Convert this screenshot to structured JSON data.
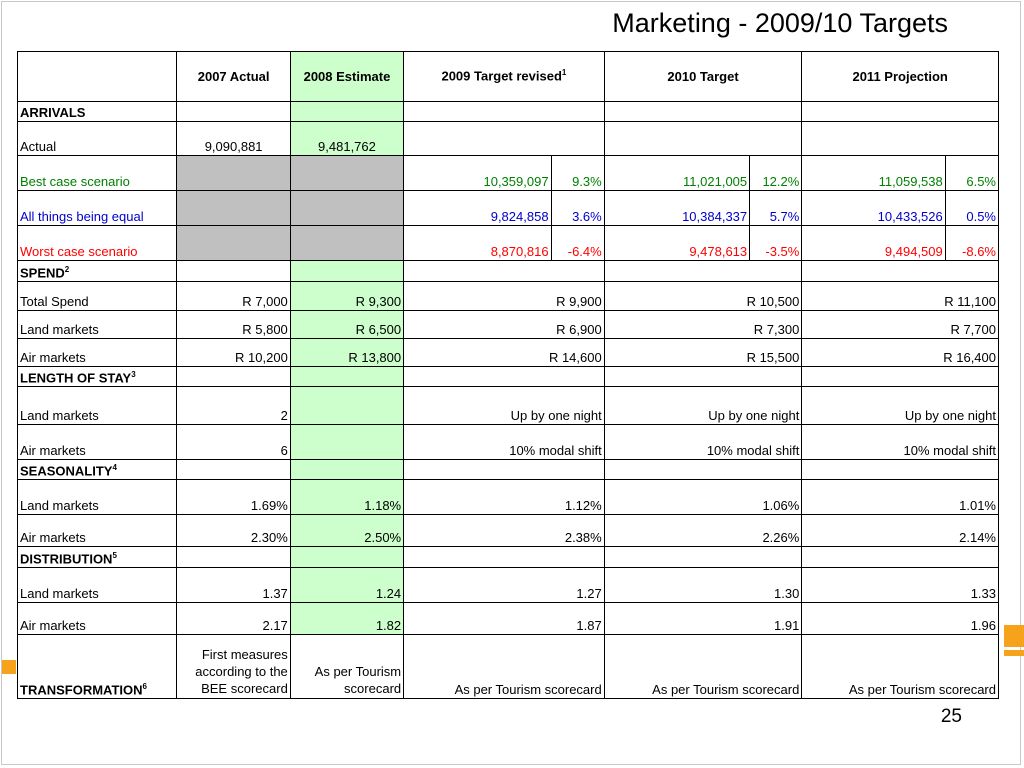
{
  "slide": {
    "title": "Marketing - 2009/10 Targets",
    "page_number": "25",
    "accent_color": "#f7a21b"
  },
  "table": {
    "headers": [
      "2007 Actual",
      "2008 Estimate",
      "2009 Target revised",
      "2010 Target",
      "2011 Projection"
    ],
    "header_footnote": "1",
    "arrivals": {
      "label": "ARRIVALS",
      "actual": {
        "label": "Actual",
        "y2007": "9,090,881",
        "y2008": "9,481,762"
      },
      "best": {
        "label": "Best case scenario",
        "y2009": "10,359,097",
        "p2009": "9.3%",
        "y2010": "11,021,005",
        "p2010": "12.2%",
        "y2011": "11,059,538",
        "p2011": "6.5%"
      },
      "equal": {
        "label": "All things being equal",
        "y2009": "9,824,858",
        "p2009": "3.6%",
        "y2010": "10,384,337",
        "p2010": "5.7%",
        "y2011": "10,433,526",
        "p2011": "0.5%"
      },
      "worst": {
        "label": "Worst case scenario",
        "y2009": "8,870,816",
        "p2009": "-6.4%",
        "y2010": "9,478,613",
        "p2010": "-3.5%",
        "y2011": "9,494,509",
        "p2011": "-8.6%"
      }
    },
    "spend": {
      "label": "SPEND",
      "footnote": "2",
      "rows": [
        {
          "label": "Total Spend",
          "v": [
            "R 7,000",
            "R 9,300",
            "R 9,900",
            "R 10,500",
            "R 11,100"
          ]
        },
        {
          "label": "Land markets",
          "v": [
            "R 5,800",
            "R 6,500",
            "R 6,900",
            "R 7,300",
            "R 7,700"
          ]
        },
        {
          "label": "Air markets",
          "v": [
            "R 10,200",
            "R 13,800",
            "R 14,600",
            "R 15,500",
            "R 16,400"
          ]
        }
      ]
    },
    "stay": {
      "label": "LENGTH OF STAY",
      "footnote": "3",
      "rows": [
        {
          "label": "Land markets",
          "v": [
            "2",
            "",
            "Up by one night",
            "Up by one night",
            "Up by one night"
          ]
        },
        {
          "label": "Air markets",
          "v": [
            "6",
            "",
            "10% modal shift",
            "10% modal shift",
            "10% modal shift"
          ]
        }
      ]
    },
    "seasonality": {
      "label": "SEASONALITY",
      "footnote": "4",
      "rows": [
        {
          "label": "Land markets",
          "v": [
            "1.69%",
            "1.18%",
            "1.12%",
            "1.06%",
            "1.01%"
          ]
        },
        {
          "label": "Air markets",
          "v": [
            "2.30%",
            "2.50%",
            "2.38%",
            "2.26%",
            "2.14%"
          ]
        }
      ]
    },
    "distribution": {
      "label": "DISTRIBUTION",
      "footnote": "5",
      "rows": [
        {
          "label": "Land markets",
          "v": [
            "1.37",
            "1.24",
            "1.27",
            "1.30",
            "1.33"
          ]
        },
        {
          "label": "Air markets",
          "v": [
            "2.17",
            "1.82",
            "1.87",
            "1.91",
            "1.96"
          ]
        }
      ]
    },
    "transformation": {
      "label": "TRANSFORMATION",
      "footnote": "6",
      "v": [
        "First measures according to the BEE scorecard",
        "As per Tourism scorecard",
        "As per Tourism scorecard",
        "As per Tourism scorecard",
        "As per Tourism scorecard"
      ]
    }
  }
}
